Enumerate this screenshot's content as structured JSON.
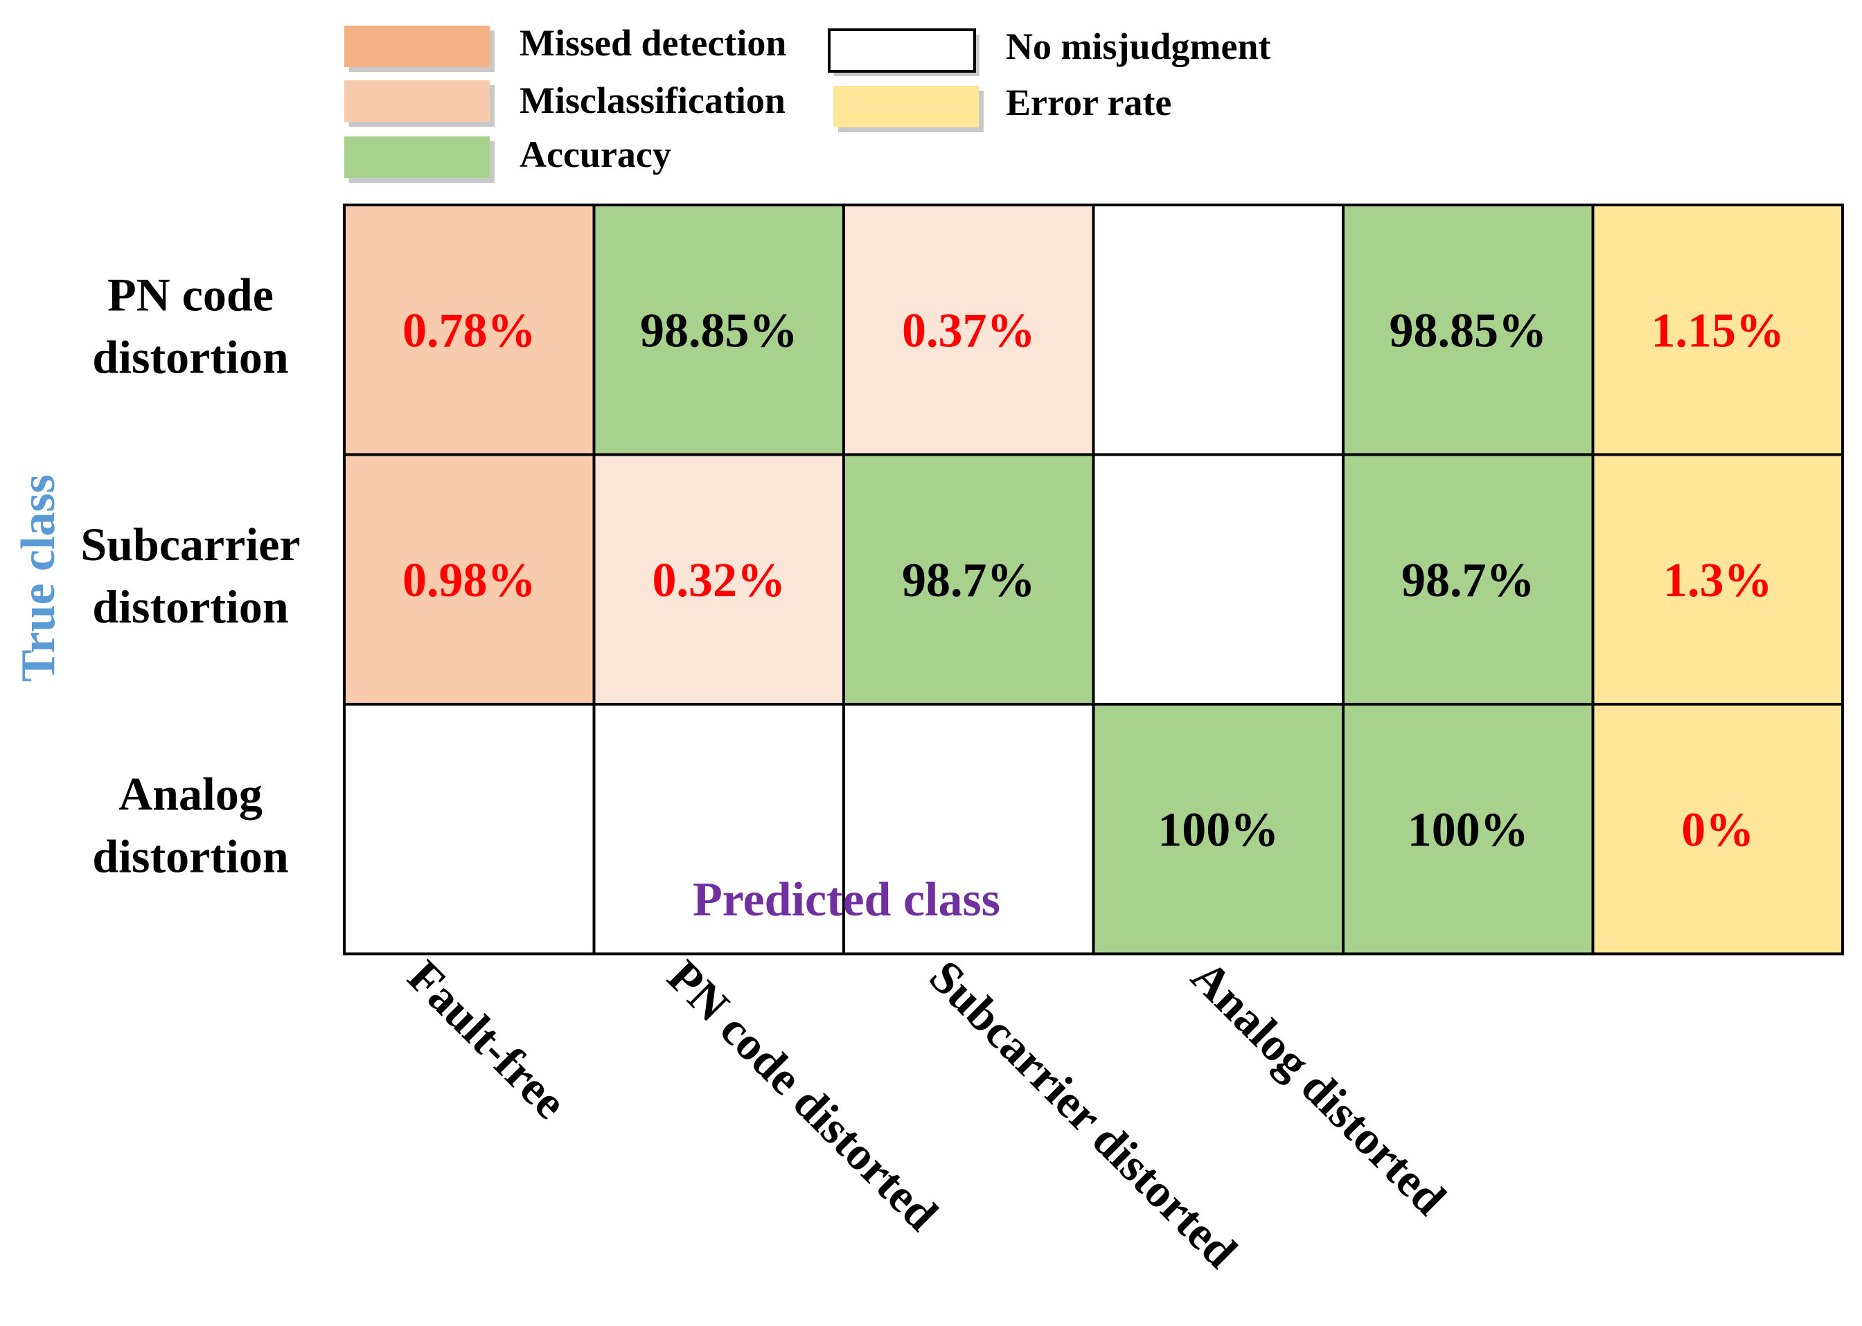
{
  "chart_data": {
    "type": "heatmap",
    "title": "",
    "xlabel": "Predicted class",
    "ylabel": "True class",
    "row_labels": [
      [
        "PN code",
        "distortion"
      ],
      [
        "Subcarrier",
        "distortion"
      ],
      [
        "Analog",
        "distortion"
      ]
    ],
    "column_labels": [
      "Fault-free",
      "PN code distorted",
      "Subcarrier distorted",
      "Analog distorted"
    ],
    "legend": [
      {
        "key": "missed",
        "label": "Missed detection",
        "color": "#F4B183"
      },
      {
        "key": "miscls",
        "label": "Misclassification",
        "color": "#F8CBAD"
      },
      {
        "key": "accuracy",
        "label": "Accuracy",
        "color": "#A9D18E"
      },
      {
        "key": "none",
        "label": "No misjudgment",
        "color": "#FFFFFF"
      },
      {
        "key": "error",
        "label": "Error rate",
        "color": "#FFE699"
      }
    ],
    "cells": [
      [
        {
          "text": "0.78%",
          "value": 0.78,
          "category": "missed"
        },
        {
          "text": "98.85%",
          "value": 98.85,
          "category": "accuracy"
        },
        {
          "text": "0.37%",
          "value": 0.37,
          "category": "miscls"
        },
        {
          "text": "",
          "value": null,
          "category": "none"
        },
        {
          "text": "98.85%",
          "value": 98.85,
          "category": "accuracy"
        },
        {
          "text": "1.15%",
          "value": 1.15,
          "category": "error"
        }
      ],
      [
        {
          "text": "0.98%",
          "value": 0.98,
          "category": "missed"
        },
        {
          "text": "0.32%",
          "value": 0.32,
          "category": "miscls"
        },
        {
          "text": "98.7%",
          "value": 98.7,
          "category": "accuracy"
        },
        {
          "text": "",
          "value": null,
          "category": "none"
        },
        {
          "text": "98.7%",
          "value": 98.7,
          "category": "accuracy"
        },
        {
          "text": "1.3%",
          "value": 1.3,
          "category": "error"
        }
      ],
      [
        {
          "text": "",
          "value": null,
          "category": "none"
        },
        {
          "text": "",
          "value": null,
          "category": "none"
        },
        {
          "text": "",
          "value": null,
          "category": "none"
        },
        {
          "text": "100%",
          "value": 100,
          "category": "accuracy"
        },
        {
          "text": "100%",
          "value": 100,
          "category": "accuracy"
        },
        {
          "text": "0%",
          "value": 0,
          "category": "error"
        }
      ]
    ],
    "colors": {
      "missed_cell": "#F8CBAD",
      "miscls_cell": "#FBE5D6",
      "accuracy_cell": "#A9D18E",
      "none_cell": "#FFFFFF",
      "error_cell": "#FFE699",
      "error_text": "#FF0000",
      "accuracy_text": "#000000",
      "ylabel_color": "#5B9BD5",
      "xlabel_color": "#7030A0",
      "grid_line": "#000000"
    }
  }
}
